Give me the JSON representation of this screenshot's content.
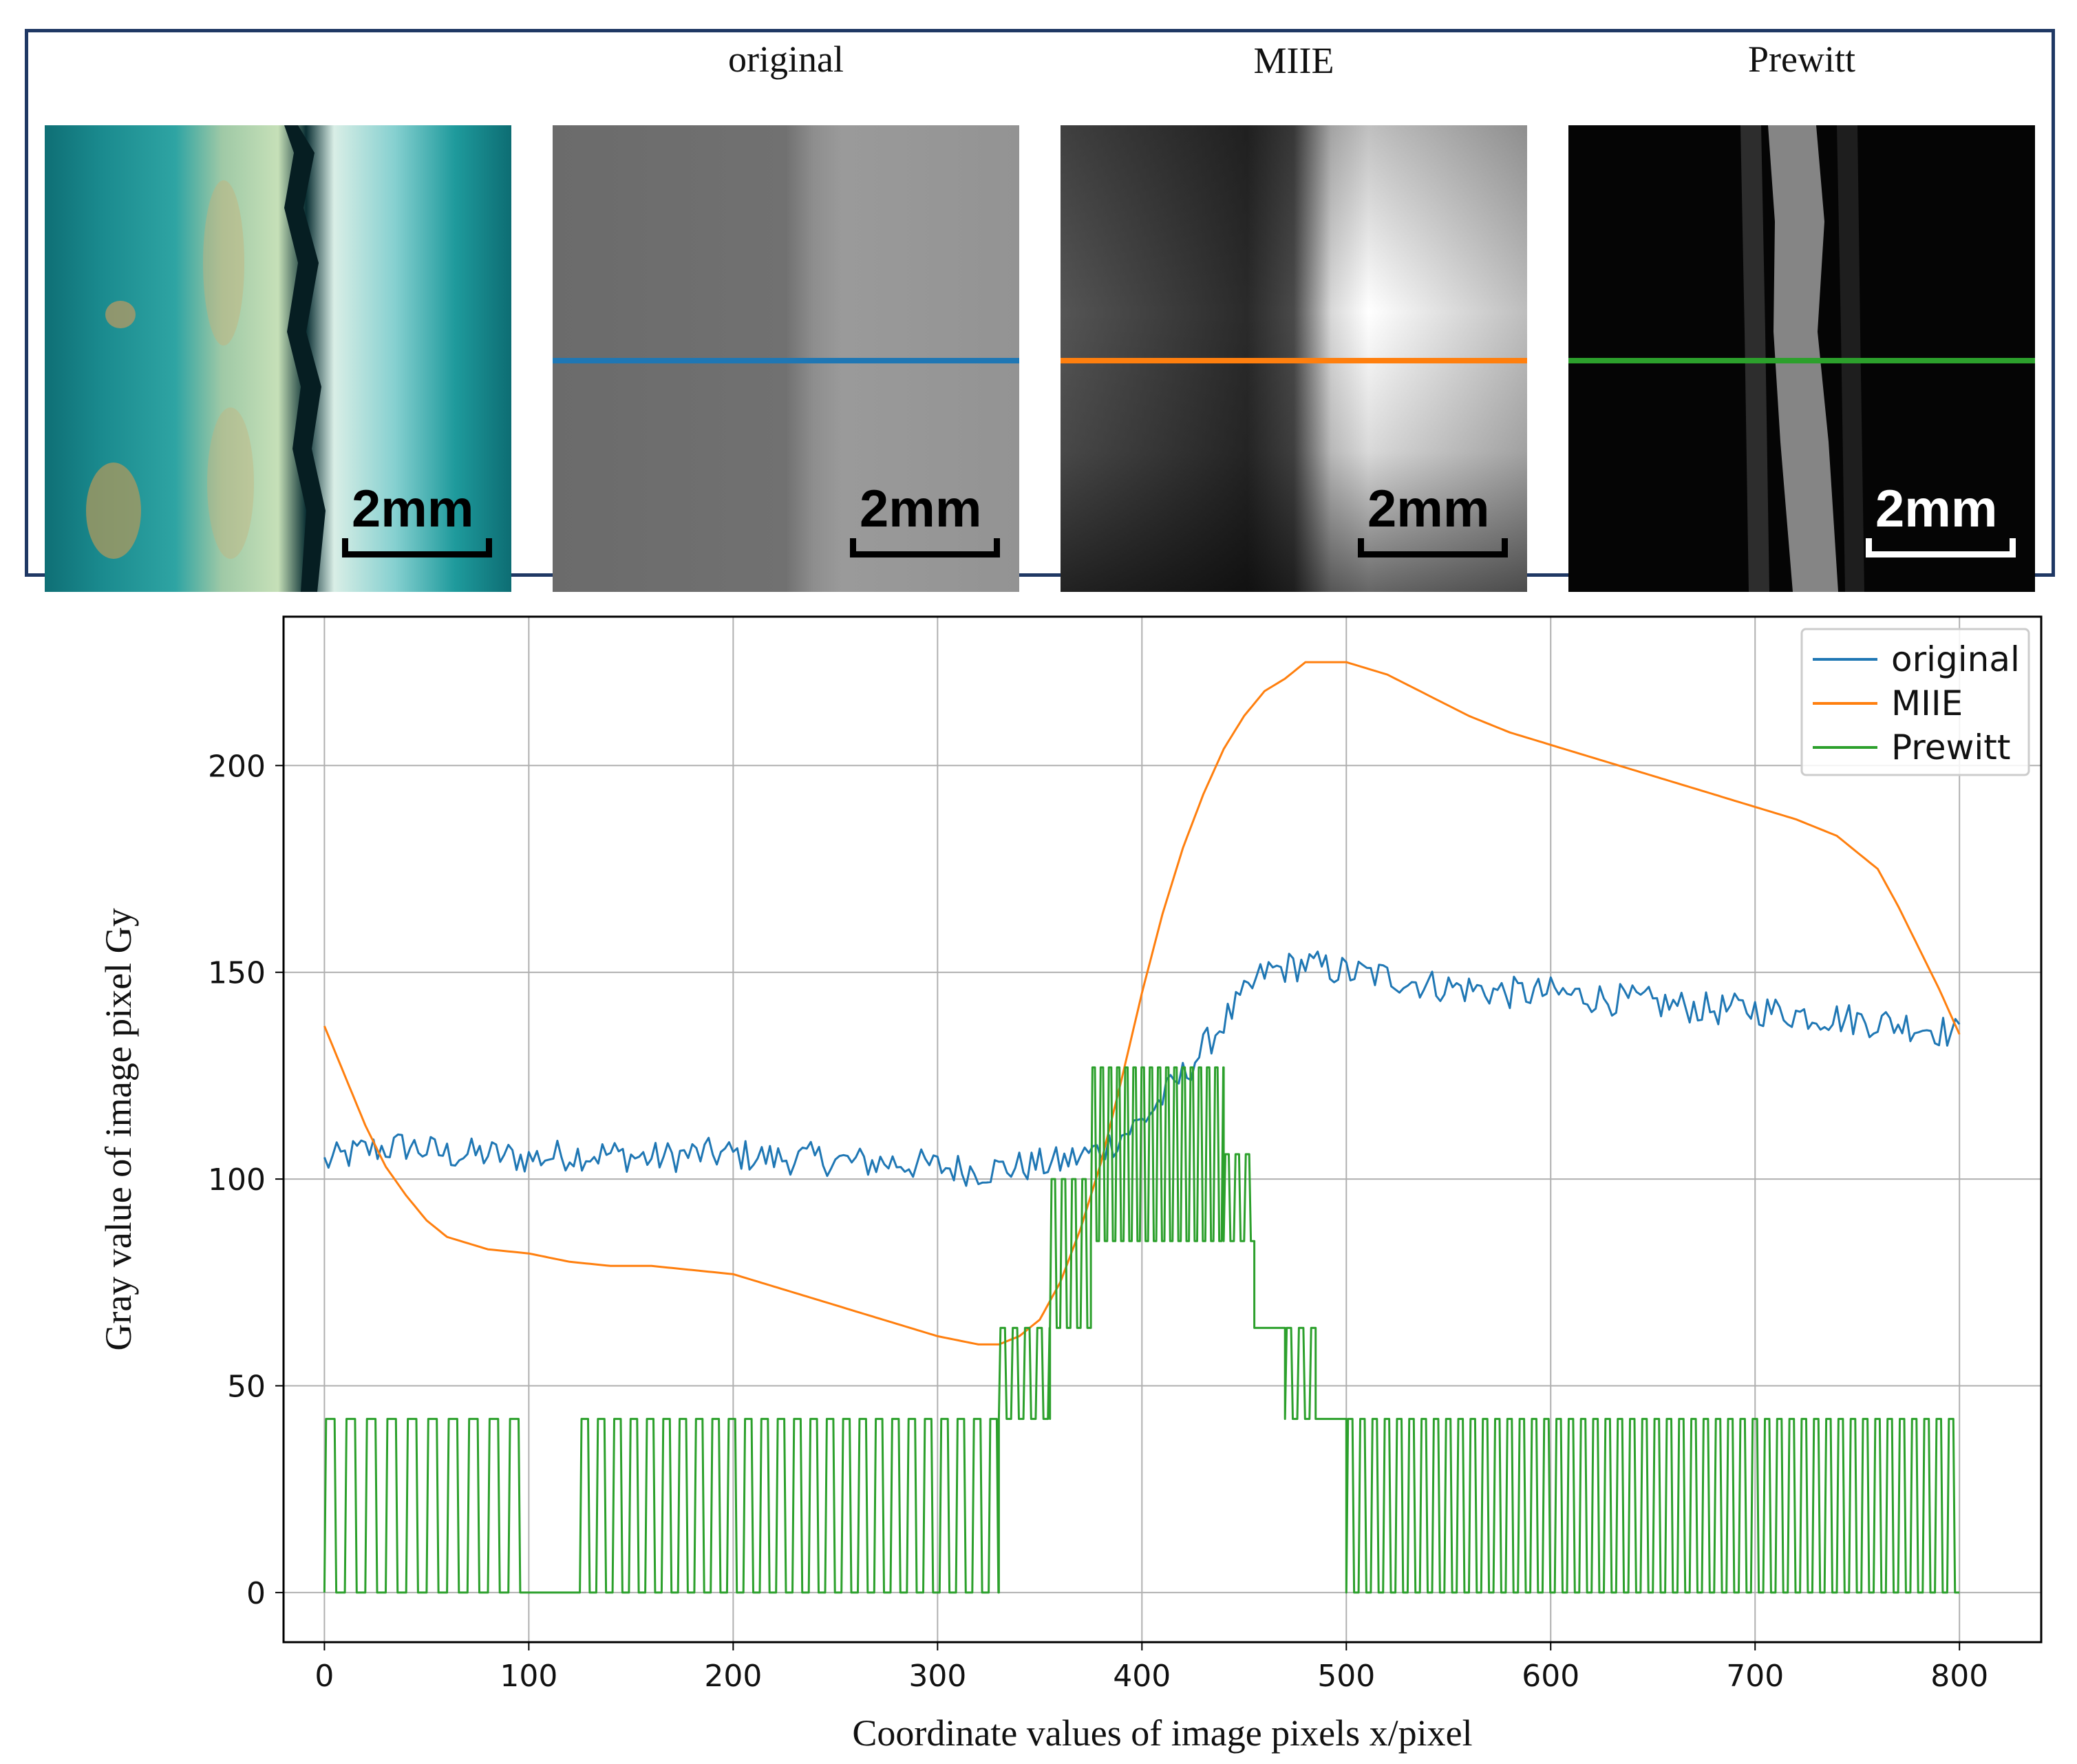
{
  "figure": {
    "panels": [
      {
        "id": "photo",
        "title": "",
        "scale_label": "2mm",
        "line_color": ""
      },
      {
        "id": "original",
        "title": "original",
        "scale_label": "2mm",
        "line_color": "#1f77b4"
      },
      {
        "id": "miie",
        "title": "MIIE",
        "scale_label": "2mm",
        "line_color": "#ff7f0e"
      },
      {
        "id": "prewitt",
        "title": "Prewitt",
        "scale_label": "2mm",
        "line_color": "#2ca02c"
      }
    ],
    "frame_color": "#1f3864"
  },
  "chart_data": {
    "type": "line",
    "xlabel": "Coordinate values of image pixels x/pixel",
    "ylabel": "Gray value of image pixel Gy",
    "xlim": [
      -20,
      840
    ],
    "ylim": [
      -12,
      236
    ],
    "xticks": [
      0,
      100,
      200,
      300,
      400,
      500,
      600,
      700,
      800
    ],
    "yticks": [
      0,
      50,
      100,
      150,
      200
    ],
    "grid": true,
    "legend_position": "top-right",
    "series": [
      {
        "name": "original",
        "color": "#1f77b4",
        "style": "noisy",
        "points": [
          [
            0,
            104
          ],
          [
            20,
            107
          ],
          [
            40,
            108
          ],
          [
            60,
            106
          ],
          [
            80,
            106
          ],
          [
            100,
            105
          ],
          [
            120,
            106
          ],
          [
            140,
            106
          ],
          [
            160,
            105
          ],
          [
            180,
            106
          ],
          [
            200,
            106
          ],
          [
            220,
            105
          ],
          [
            240,
            105
          ],
          [
            260,
            104
          ],
          [
            280,
            104
          ],
          [
            300,
            103
          ],
          [
            320,
            102
          ],
          [
            340,
            103
          ],
          [
            360,
            104
          ],
          [
            380,
            107
          ],
          [
            400,
            114
          ],
          [
            420,
            125
          ],
          [
            440,
            138
          ],
          [
            460,
            150
          ],
          [
            480,
            152
          ],
          [
            500,
            150
          ],
          [
            520,
            149
          ],
          [
            540,
            147
          ],
          [
            560,
            146
          ],
          [
            580,
            145
          ],
          [
            600,
            145
          ],
          [
            620,
            144
          ],
          [
            640,
            143
          ],
          [
            660,
            142
          ],
          [
            680,
            141
          ],
          [
            700,
            141
          ],
          [
            720,
            140
          ],
          [
            740,
            139
          ],
          [
            760,
            138
          ],
          [
            780,
            137
          ],
          [
            800,
            135
          ]
        ],
        "noise_amplitude": 4
      },
      {
        "name": "MIIE",
        "color": "#ff7f0e",
        "style": "smooth",
        "points": [
          [
            0,
            137
          ],
          [
            10,
            125
          ],
          [
            20,
            113
          ],
          [
            30,
            103
          ],
          [
            40,
            96
          ],
          [
            50,
            90
          ],
          [
            60,
            86
          ],
          [
            80,
            83
          ],
          [
            100,
            82
          ],
          [
            120,
            80
          ],
          [
            140,
            79
          ],
          [
            160,
            79
          ],
          [
            180,
            78
          ],
          [
            200,
            77
          ],
          [
            220,
            74
          ],
          [
            240,
            71
          ],
          [
            260,
            68
          ],
          [
            280,
            65
          ],
          [
            300,
            62
          ],
          [
            320,
            60
          ],
          [
            330,
            60
          ],
          [
            340,
            62
          ],
          [
            350,
            66
          ],
          [
            360,
            75
          ],
          [
            370,
            88
          ],
          [
            380,
            104
          ],
          [
            390,
            124
          ],
          [
            400,
            145
          ],
          [
            410,
            164
          ],
          [
            420,
            180
          ],
          [
            430,
            193
          ],
          [
            440,
            204
          ],
          [
            450,
            212
          ],
          [
            460,
            218
          ],
          [
            470,
            221
          ],
          [
            480,
            225
          ],
          [
            500,
            225
          ],
          [
            520,
            222
          ],
          [
            540,
            217
          ],
          [
            560,
            212
          ],
          [
            580,
            208
          ],
          [
            600,
            205
          ],
          [
            620,
            202
          ],
          [
            640,
            199
          ],
          [
            660,
            196
          ],
          [
            680,
            193
          ],
          [
            700,
            190
          ],
          [
            720,
            187
          ],
          [
            740,
            183
          ],
          [
            760,
            175
          ],
          [
            770,
            166
          ],
          [
            780,
            156
          ],
          [
            790,
            146
          ],
          [
            800,
            135
          ]
        ]
      },
      {
        "name": "Prewitt",
        "color": "#2ca02c",
        "style": "step-pulse",
        "segments": [
          {
            "from": 0,
            "to": 100,
            "low": 0,
            "high": 42,
            "period": 10
          },
          {
            "from": 100,
            "to": 125,
            "low": 0,
            "high": 0,
            "period": 0
          },
          {
            "from": 125,
            "to": 330,
            "low": 0,
            "high": 42,
            "period": 8
          },
          {
            "from": 330,
            "to": 355,
            "low": 42,
            "high": 64,
            "period": 6
          },
          {
            "from": 355,
            "to": 375,
            "low": 64,
            "high": 100,
            "period": 5
          },
          {
            "from": 375,
            "to": 440,
            "low": 85,
            "high": 127,
            "period": 4
          },
          {
            "from": 440,
            "to": 455,
            "low": 85,
            "high": 106,
            "period": 5
          },
          {
            "from": 455,
            "to": 470,
            "low": 64,
            "high": 64,
            "period": 0
          },
          {
            "from": 470,
            "to": 485,
            "low": 42,
            "high": 64,
            "period": 6
          },
          {
            "from": 485,
            "to": 500,
            "low": 42,
            "high": 42,
            "period": 0
          },
          {
            "from": 500,
            "to": 800,
            "low": 0,
            "high": 42,
            "period": 6
          }
        ]
      }
    ]
  }
}
